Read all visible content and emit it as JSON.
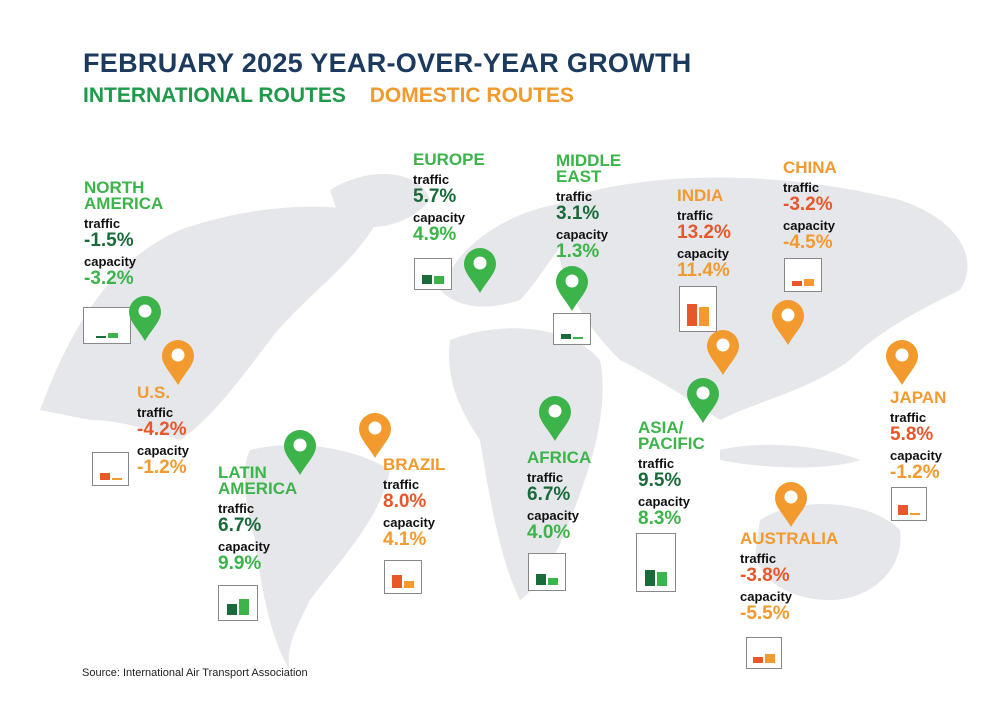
{
  "title": "FEBRUARY 2025 YEAR-OVER-YEAR GROWTH",
  "legend": {
    "international": "INTERNATIONAL ROUTES",
    "domestic": "DOMESTIC ROUTES"
  },
  "labels": {
    "traffic": "traffic",
    "capacity": "capacity"
  },
  "source": "Source: International Air Transport Association",
  "colors": {
    "title": "#1c3a5e",
    "international_name": "#3cb44a",
    "international_traffic": "#1a6b3a",
    "international_capacity": "#3cb44a",
    "domestic_name": "#f29a2e",
    "domestic_traffic": "#e8572a",
    "domestic_capacity": "#f29a2e",
    "map": "#e6e7eb"
  },
  "chart_data": {
    "type": "bar",
    "title": "FEBRUARY 2025 YEAR-OVER-YEAR GROWTH",
    "unit": "%",
    "series_labels": [
      "traffic",
      "capacity"
    ],
    "regions": [
      {
        "name": "NORTH AMERICA",
        "type": "international",
        "traffic": "-1.5%",
        "capacity": "-3.2%",
        "traffic_value": -1.5,
        "capacity_value": -3.2
      },
      {
        "name": "U.S.",
        "type": "domestic",
        "traffic": "-4.2%",
        "capacity": "-1.2%",
        "traffic_value": -4.2,
        "capacity_value": -1.2
      },
      {
        "name": "LATIN AMERICA",
        "type": "international",
        "traffic": "6.7%",
        "capacity": "9.9%",
        "traffic_value": 6.7,
        "capacity_value": 9.9
      },
      {
        "name": "BRAZIL",
        "type": "domestic",
        "traffic": "8.0%",
        "capacity": "4.1%",
        "traffic_value": 8.0,
        "capacity_value": 4.1
      },
      {
        "name": "EUROPE",
        "type": "international",
        "traffic": "5.7%",
        "capacity": "4.9%",
        "traffic_value": 5.7,
        "capacity_value": 4.9
      },
      {
        "name": "MIDDLE EAST",
        "type": "international",
        "traffic": "3.1%",
        "capacity": "1.3%",
        "traffic_value": 3.1,
        "capacity_value": 1.3
      },
      {
        "name": "AFRICA",
        "type": "international",
        "traffic": "6.7%",
        "capacity": "4.0%",
        "traffic_value": 6.7,
        "capacity_value": 4.0
      },
      {
        "name": "INDIA",
        "type": "domestic",
        "traffic": "13.2%",
        "capacity": "11.4%",
        "traffic_value": 13.2,
        "capacity_value": 11.4
      },
      {
        "name": "CHINA",
        "type": "domestic",
        "traffic": "-3.2%",
        "capacity": "-4.5%",
        "traffic_value": -3.2,
        "capacity_value": -4.5
      },
      {
        "name": "ASIA/ PACIFIC",
        "type": "international",
        "traffic": "9.5%",
        "capacity": "8.3%",
        "traffic_value": 9.5,
        "capacity_value": 8.3
      },
      {
        "name": "JAPAN",
        "type": "domestic",
        "traffic": "5.8%",
        "capacity": "-1.2%",
        "traffic_value": 5.8,
        "capacity_value": -1.2
      },
      {
        "name": "AUSTRALIA",
        "type": "domestic",
        "traffic": "-3.8%",
        "capacity": "-5.5%",
        "traffic_value": -3.8,
        "capacity_value": -5.5
      }
    ]
  }
}
